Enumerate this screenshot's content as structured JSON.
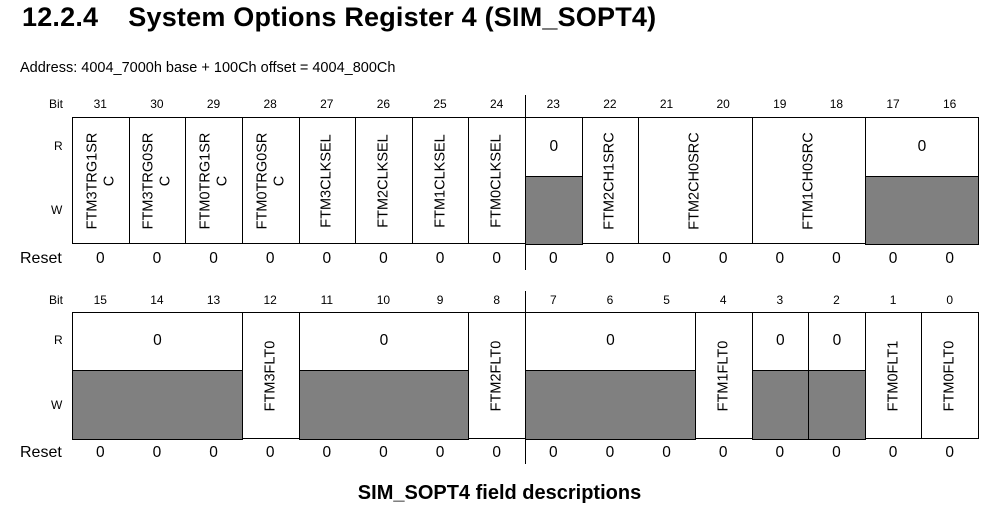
{
  "section": {
    "number": "12.2.4",
    "title": "System Options Register 4 (SIM_SOPT4)"
  },
  "address_line": "Address: 4004_7000h base + 100Ch offset = 4004_800Ch",
  "row_labels": {
    "bit": "Bit",
    "read": "R",
    "write": "W",
    "reset": "Reset"
  },
  "upper": {
    "bits": [
      "31",
      "30",
      "29",
      "28",
      "27",
      "26",
      "25",
      "24",
      "23",
      "22",
      "21",
      "20",
      "19",
      "18",
      "17",
      "16"
    ],
    "fields": [
      {
        "label": "FTM3TRG1SR\nC",
        "span": 1
      },
      {
        "label": "FTM3TRG0SR\nC",
        "span": 1
      },
      {
        "label": "FTM0TRG1SR\nC",
        "span": 1
      },
      {
        "label": "FTM0TRG0SR\nC",
        "span": 1
      },
      {
        "label": "FTM3CLKSEL",
        "span": 1
      },
      {
        "label": "FTM2CLKSEL",
        "span": 1
      },
      {
        "label": "FTM1CLKSEL",
        "span": 1
      },
      {
        "label": "FTM0CLKSEL",
        "span": 1
      },
      {
        "reserved": "0",
        "span": 1
      },
      {
        "label": "FTM2CH1SRC",
        "span": 1
      },
      {
        "label": "FTM2CH0SRC",
        "span": 2
      },
      {
        "label": "FTM1CH0SRC",
        "span": 2
      },
      {
        "reserved": "0",
        "span": 2
      }
    ],
    "reset": [
      "0",
      "0",
      "0",
      "0",
      "0",
      "0",
      "0",
      "0",
      "0",
      "0",
      "0",
      "0",
      "0",
      "0",
      "0",
      "0"
    ]
  },
  "lower": {
    "bits": [
      "15",
      "14",
      "13",
      "12",
      "11",
      "10",
      "9",
      "8",
      "7",
      "6",
      "5",
      "4",
      "3",
      "2",
      "1",
      "0"
    ],
    "fields": [
      {
        "reserved": "0",
        "span": 3
      },
      {
        "label": "FTM3FLT0",
        "span": 1
      },
      {
        "reserved": "0",
        "span": 3
      },
      {
        "label": "FTM2FLT0",
        "span": 1
      },
      {
        "reserved": "0",
        "span": 3
      },
      {
        "label": "FTM1FLT0",
        "span": 1
      },
      {
        "reserved": "0",
        "span": 1
      },
      {
        "reserved": "0",
        "span": 1
      },
      {
        "label": "FTM0FLT1",
        "span": 1
      },
      {
        "label": "FTM0FLT0",
        "span": 1
      }
    ],
    "reset": [
      "0",
      "0",
      "0",
      "0",
      "0",
      "0",
      "0",
      "0",
      "0",
      "0",
      "0",
      "0",
      "0",
      "0",
      "0",
      "0"
    ]
  },
  "caption": "SIM_SOPT4 field descriptions",
  "colors": {
    "reserved_shade": "#808080",
    "border": "#000000",
    "background": "#ffffff"
  }
}
